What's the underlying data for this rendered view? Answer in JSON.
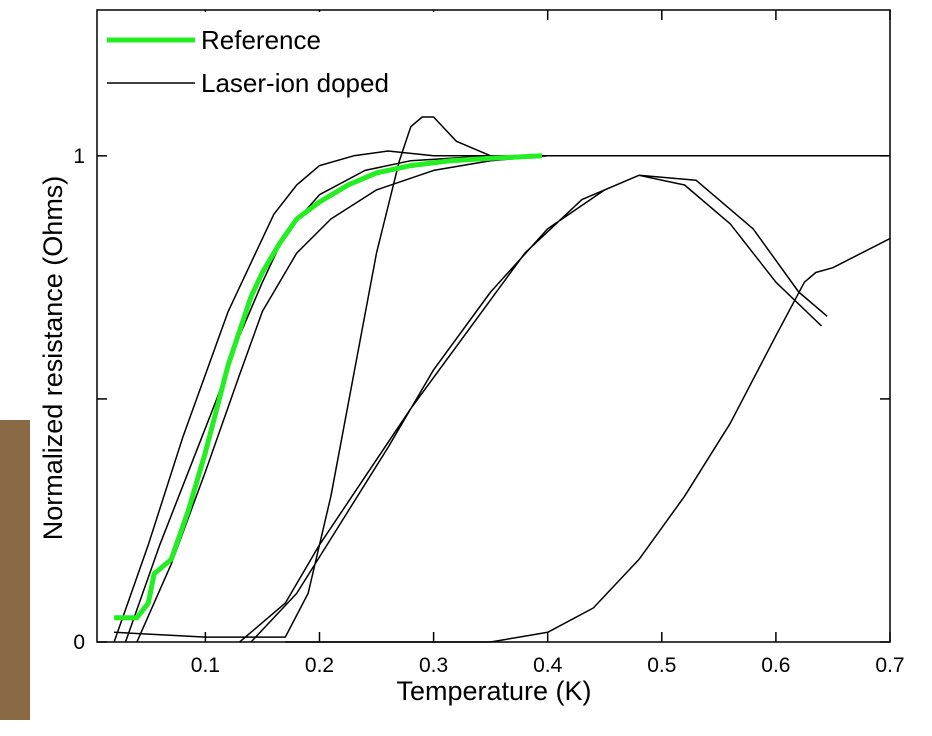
{
  "chart_data": {
    "type": "line",
    "x_label": "Temperature (K)",
    "y_label": "Normalized resistance (Ohms)",
    "xlim": [
      0.005,
      0.7
    ],
    "ylim": [
      0,
      1.3
    ],
    "xticks": [
      0.1,
      0.2,
      0.3,
      0.4,
      0.5,
      0.6,
      0.7
    ],
    "yticks": [
      0,
      {
        "value": 0.5,
        "label": null
      },
      1
    ],
    "legend": "upper left",
    "series": [
      {
        "name": "Reference",
        "color": "#22ee22",
        "x": [
          0.02,
          0.04,
          0.05,
          0.055,
          0.07,
          0.085,
          0.1,
          0.11,
          0.12,
          0.13,
          0.14,
          0.15,
          0.165,
          0.18,
          0.2,
          0.225,
          0.25,
          0.28,
          0.315,
          0.35,
          0.395
        ],
        "values": [
          0.05,
          0.05,
          0.08,
          0.14,
          0.17,
          0.27,
          0.39,
          0.48,
          0.57,
          0.64,
          0.71,
          0.76,
          0.82,
          0.87,
          0.905,
          0.94,
          0.965,
          0.98,
          0.99,
          0.995,
          1.0
        ]
      },
      {
        "name": "Laser-ion doped",
        "color": "#000000",
        "x": [
          0.02,
          0.05,
          0.08,
          0.1,
          0.12,
          0.14,
          0.16,
          0.18,
          0.2,
          0.23,
          0.26,
          0.3,
          0.4,
          0.5,
          0.6,
          0.7,
          null,
          0.03,
          0.06,
          0.09,
          0.11,
          0.13,
          0.15,
          0.17,
          0.2,
          0.24,
          0.28,
          0.35,
          0.45,
          0.55,
          0.7,
          null,
          0.04,
          0.07,
          0.1,
          0.13,
          0.15,
          0.18,
          0.21,
          0.25,
          0.3,
          0.35,
          0.4,
          0.5,
          null,
          0.02,
          0.1,
          0.17,
          0.19,
          0.21,
          0.23,
          0.25,
          0.27,
          0.28,
          0.29,
          0.3,
          0.32,
          0.35,
          0.45,
          0.6,
          0.7,
          null,
          0.14,
          0.18,
          0.22,
          0.26,
          0.3,
          0.35,
          0.4,
          0.45,
          0.48,
          0.52,
          0.56,
          0.6,
          0.64,
          null,
          0.13,
          0.17,
          0.2,
          0.24,
          0.28,
          0.33,
          0.38,
          0.43,
          0.48,
          0.53,
          0.58,
          0.62,
          0.645,
          null,
          0.17,
          0.3,
          0.35,
          0.4,
          0.44,
          0.48,
          0.52,
          0.56,
          0.6,
          0.625,
          0.635,
          0.65,
          0.7
        ],
        "values": [
          0,
          0.2,
          0.42,
          0.55,
          0.68,
          0.78,
          0.88,
          0.94,
          0.98,
          1.0,
          1.01,
          1.0,
          1.0,
          1.0,
          1.0,
          1.0,
          null,
          0,
          0.2,
          0.38,
          0.5,
          0.63,
          0.74,
          0.84,
          0.92,
          0.97,
          0.99,
          1.0,
          1.0,
          1.0,
          1.0,
          null,
          0,
          0.16,
          0.35,
          0.55,
          0.68,
          0.8,
          0.87,
          0.93,
          0.97,
          0.99,
          1.0,
          1.0,
          null,
          0.02,
          0.01,
          0.01,
          0.1,
          0.3,
          0.55,
          0.8,
          0.99,
          1.06,
          1.08,
          1.08,
          1.03,
          1.0,
          1.0,
          1.0,
          1.0,
          null,
          0,
          0.1,
          0.25,
          0.4,
          0.56,
          0.72,
          0.85,
          0.93,
          0.96,
          0.94,
          0.86,
          0.74,
          0.65,
          null,
          0,
          0.08,
          0.2,
          0.34,
          0.48,
          0.64,
          0.8,
          0.91,
          0.96,
          0.95,
          0.85,
          0.72,
          0.67,
          null,
          0,
          0,
          0,
          0.02,
          0.07,
          0.17,
          0.3,
          0.45,
          0.63,
          0.74,
          0.76,
          0.77,
          0.83
        ]
      }
    ]
  }
}
